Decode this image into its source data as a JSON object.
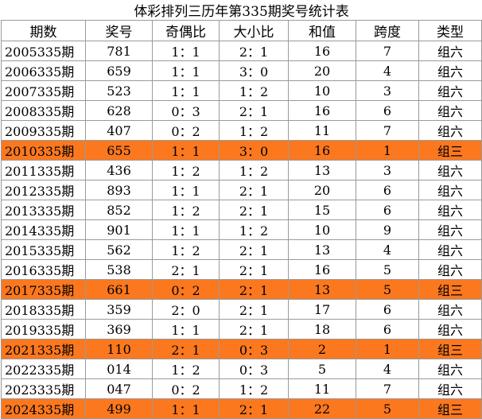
{
  "title": "体彩排列三历年第335期奖号统计表",
  "headers": [
    "期数",
    "奖号",
    "奇偶比",
    "大小比",
    "和值",
    "跨度",
    "类型"
  ],
  "highlight_color": "#fb781f",
  "rows": [
    {
      "period": "2005335期",
      "number": "781",
      "odd_even": "1：1",
      "big_small": "2：1",
      "sum": "16",
      "span": "7",
      "type": "组六",
      "highlight": false
    },
    {
      "period": "2006335期",
      "number": "659",
      "odd_even": "1：1",
      "big_small": "3：0",
      "sum": "20",
      "span": "4",
      "type": "组六",
      "highlight": false
    },
    {
      "period": "2007335期",
      "number": "523",
      "odd_even": "1：1",
      "big_small": "1：2",
      "sum": "10",
      "span": "3",
      "type": "组六",
      "highlight": false
    },
    {
      "period": "2008335期",
      "number": "628",
      "odd_even": "0：3",
      "big_small": "2：1",
      "sum": "16",
      "span": "6",
      "type": "组六",
      "highlight": false
    },
    {
      "period": "2009335期",
      "number": "407",
      "odd_even": "0：2",
      "big_small": "1：2",
      "sum": "11",
      "span": "7",
      "type": "组六",
      "highlight": false
    },
    {
      "period": "2010335期",
      "number": "655",
      "odd_even": "1：1",
      "big_small": "3：0",
      "sum": "16",
      "span": "1",
      "type": "组三",
      "highlight": true
    },
    {
      "period": "2011335期",
      "number": "436",
      "odd_even": "1：2",
      "big_small": "1：2",
      "sum": "13",
      "span": "3",
      "type": "组六",
      "highlight": false
    },
    {
      "period": "2012335期",
      "number": "893",
      "odd_even": "1：1",
      "big_small": "2：1",
      "sum": "20",
      "span": "6",
      "type": "组六",
      "highlight": false
    },
    {
      "period": "2013335期",
      "number": "852",
      "odd_even": "1：2",
      "big_small": "2：1",
      "sum": "15",
      "span": "6",
      "type": "组六",
      "highlight": false
    },
    {
      "period": "2014335期",
      "number": "901",
      "odd_even": "1：1",
      "big_small": "1：2",
      "sum": "10",
      "span": "9",
      "type": "组六",
      "highlight": false
    },
    {
      "period": "2015335期",
      "number": "562",
      "odd_even": "1：2",
      "big_small": "2：1",
      "sum": "13",
      "span": "4",
      "type": "组六",
      "highlight": false
    },
    {
      "period": "2016335期",
      "number": "538",
      "odd_even": "2：1",
      "big_small": "2：1",
      "sum": "16",
      "span": "5",
      "type": "组六",
      "highlight": false
    },
    {
      "period": "2017335期",
      "number": "661",
      "odd_even": "0：2",
      "big_small": "2：1",
      "sum": "13",
      "span": "5",
      "type": "组三",
      "highlight": true
    },
    {
      "period": "2018335期",
      "number": "359",
      "odd_even": "2：0",
      "big_small": "2：1",
      "sum": "17",
      "span": "6",
      "type": "组六",
      "highlight": false
    },
    {
      "period": "2019335期",
      "number": "369",
      "odd_even": "1：1",
      "big_small": "2：1",
      "sum": "18",
      "span": "6",
      "type": "组六",
      "highlight": false
    },
    {
      "period": "2021335期",
      "number": "110",
      "odd_even": "2：1",
      "big_small": "0：3",
      "sum": "2",
      "span": "1",
      "type": "组三",
      "highlight": true
    },
    {
      "period": "2022335期",
      "number": "014",
      "odd_even": "1：2",
      "big_small": "0：3",
      "sum": "5",
      "span": "4",
      "type": "组六",
      "highlight": false
    },
    {
      "period": "2023335期",
      "number": "047",
      "odd_even": "0：2",
      "big_small": "1：2",
      "sum": "11",
      "span": "7",
      "type": "组六",
      "highlight": false
    },
    {
      "period": "2024335期",
      "number": "499",
      "odd_even": "1：1",
      "big_small": "2：1",
      "sum": "22",
      "span": "5",
      "type": "组三",
      "highlight": true
    }
  ]
}
